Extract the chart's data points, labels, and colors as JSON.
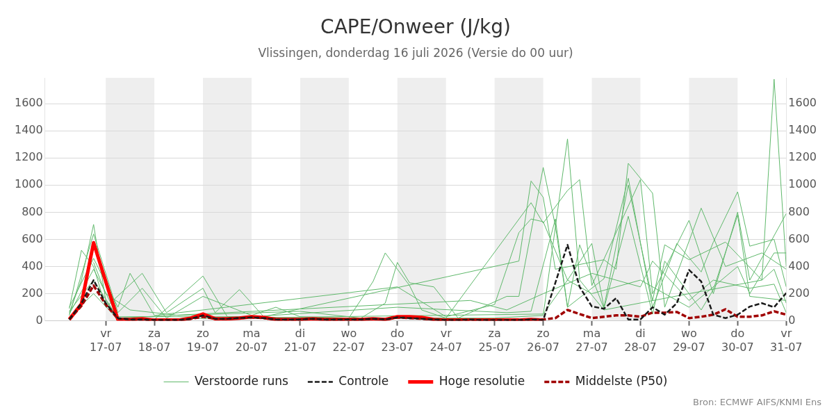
{
  "chart_data": {
    "type": "line",
    "title": "CAPE/Onweer (J/kg)",
    "subtitle": "Vlissingen, donderdag 16 juli 2026 (Versie do 00 uur)",
    "x": [
      "2026-07-16T06:00",
      "2026-07-16T12:00",
      "2026-07-16T18:00",
      "2026-07-17T00:00",
      "2026-07-17T06:00",
      "2026-07-17T12:00",
      "2026-07-17T18:00",
      "2026-07-18T00:00",
      "2026-07-18T06:00",
      "2026-07-18T12:00",
      "2026-07-18T18:00",
      "2026-07-19T00:00",
      "2026-07-19T06:00",
      "2026-07-19T12:00",
      "2026-07-19T18:00",
      "2026-07-20T00:00",
      "2026-07-20T06:00",
      "2026-07-20T12:00",
      "2026-07-20T18:00",
      "2026-07-21T00:00",
      "2026-07-21T06:00",
      "2026-07-21T12:00",
      "2026-07-21T18:00",
      "2026-07-22T00:00",
      "2026-07-22T06:00",
      "2026-07-22T12:00",
      "2026-07-22T18:00",
      "2026-07-23T00:00",
      "2026-07-23T06:00",
      "2026-07-23T12:00",
      "2026-07-23T18:00",
      "2026-07-24T00:00",
      "2026-07-24T06:00",
      "2026-07-24T12:00",
      "2026-07-24T18:00",
      "2026-07-25T00:00",
      "2026-07-25T06:00",
      "2026-07-25T12:00",
      "2026-07-25T18:00",
      "2026-07-26T00:00",
      "2026-07-26T06:00",
      "2026-07-26T12:00",
      "2026-07-26T18:00",
      "2026-07-27T00:00",
      "2026-07-27T06:00",
      "2026-07-27T12:00",
      "2026-07-27T18:00",
      "2026-07-28T00:00",
      "2026-07-28T06:00",
      "2026-07-28T12:00",
      "2026-07-28T18:00",
      "2026-07-29T00:00",
      "2026-07-29T06:00",
      "2026-07-29T12:00",
      "2026-07-29T18:00",
      "2026-07-30T00:00",
      "2026-07-30T06:00",
      "2026-07-30T12:00",
      "2026-07-30T18:00",
      "2026-07-31T00:00"
    ],
    "series": [
      {
        "name": "Verstoorde runs",
        "color": "#5fb86b",
        "line_style": "solid",
        "x": [
          "2026-07-16T06:00",
          "2026-07-16T12:00",
          "2026-07-16T18:00",
          "2026-07-17T00:00",
          "2026-07-17T06:00",
          "2026-07-18T00:00",
          "2026-07-19T00:00",
          "2026-07-19T12:00",
          "2026-07-22T00:00",
          "2026-07-25T00:00",
          "2026-07-26T00:00",
          "2026-07-26T12:00",
          "2026-07-26T18:00",
          "2026-07-27T06:00",
          "2026-07-29T00:00",
          "2026-07-30T12:00",
          "2026-07-30T18:00",
          "2026-07-31T00:00"
        ],
        "values": [
          60,
          300,
          710,
          150,
          20,
          10,
          330,
          30,
          20,
          20,
          40,
          1340,
          300,
          80,
          200,
          300,
          1780,
          400
        ]
      },
      {
        "name": null,
        "color": "#5fb86b",
        "line_style": "solid",
        "x": [
          "2026-07-16T06:00",
          "2026-07-16T12:00",
          "2026-07-16T18:00",
          "2026-07-17T00:00",
          "2026-07-17T18:00",
          "2026-07-18T06:00",
          "2026-07-19T00:00",
          "2026-07-19T06:00",
          "2026-07-19T18:00",
          "2026-07-20T06:00",
          "2026-07-25T12:00",
          "2026-07-25T18:00",
          "2026-07-26T00:00",
          "2026-07-26T06:00",
          "2026-07-27T06:00",
          "2026-07-27T12:00",
          "2026-07-27T18:00",
          "2026-07-28T06:00",
          "2026-07-28T12:00",
          "2026-07-29T06:00",
          "2026-07-29T18:00",
          "2026-07-30T12:00",
          "2026-07-31T00:00"
        ],
        "values": [
          90,
          520,
          400,
          100,
          350,
          60,
          240,
          60,
          230,
          30,
          440,
          1030,
          910,
          380,
          450,
          380,
          1160,
          940,
          100,
          830,
          400,
          500,
          380
        ]
      },
      {
        "name": null,
        "color": "#5fb86b",
        "line_style": "solid",
        "x": [
          "2026-07-16T06:00",
          "2026-07-16T18:00",
          "2026-07-17T06:00",
          "2026-07-17T18:00",
          "2026-07-18T06:00",
          "2026-07-19T00:00",
          "2026-07-20T00:00",
          "2026-07-20T12:00",
          "2026-07-21T00:00",
          "2026-07-22T00:00",
          "2026-07-22T12:00",
          "2026-07-22T18:00",
          "2026-07-23T06:00",
          "2026-07-23T12:00",
          "2026-07-24T00:00",
          "2026-07-25T18:00",
          "2026-07-26T00:00",
          "2026-07-26T12:00",
          "2026-07-26T18:00",
          "2026-07-27T00:00",
          "2026-07-28T00:00",
          "2026-07-28T06:00",
          "2026-07-29T00:00",
          "2026-07-29T12:00",
          "2026-07-30T00:00",
          "2026-07-30T06:00",
          "2026-07-31T00:00"
        ],
        "values": [
          40,
          640,
          60,
          240,
          20,
          180,
          40,
          100,
          30,
          20,
          290,
          500,
          260,
          80,
          20,
          870,
          720,
          960,
          1040,
          260,
          1040,
          200,
          740,
          200,
          800,
          300,
          790
        ]
      },
      {
        "name": null,
        "color": "#5fb86b",
        "line_style": "solid",
        "x": [
          "2026-07-16T18:00",
          "2026-07-17T00:00",
          "2026-07-17T12:00",
          "2026-07-18T12:00",
          "2026-07-21T00:00",
          "2026-07-22T06:00",
          "2026-07-22T18:00",
          "2026-07-23T00:00",
          "2026-07-23T06:00",
          "2026-07-23T18:00",
          "2026-07-24T06:00",
          "2026-07-25T06:00",
          "2026-07-25T12:00",
          "2026-07-26T00:00",
          "2026-07-26T06:00",
          "2026-07-26T12:00",
          "2026-07-27T06:00",
          "2026-07-27T18:00",
          "2026-07-28T06:00",
          "2026-07-28T18:00",
          "2026-07-29T06:00",
          "2026-07-29T12:00",
          "2026-07-30T00:00",
          "2026-07-30T06:00",
          "2026-07-30T18:00",
          "2026-07-31T00:00"
        ],
        "values": [
          430,
          200,
          80,
          40,
          70,
          20,
          130,
          430,
          280,
          250,
          20,
          180,
          180,
          1130,
          700,
          100,
          310,
          1050,
          100,
          570,
          360,
          580,
          950,
          550,
          600,
          250
        ]
      },
      {
        "name": null,
        "color": "#5fb86b",
        "line_style": "solid",
        "x": [
          "2026-07-16T06:00",
          "2026-07-16T18:00",
          "2026-07-17T06:00",
          "2026-07-17T12:00",
          "2026-07-18T00:00",
          "2026-07-19T00:00",
          "2026-07-23T00:00",
          "2026-07-24T00:00",
          "2026-07-25T00:00",
          "2026-07-25T12:00",
          "2026-07-25T18:00",
          "2026-07-26T00:00",
          "2026-07-26T12:00",
          "2026-07-27T00:00",
          "2026-07-27T06:00",
          "2026-07-27T18:00",
          "2026-07-28T06:00",
          "2026-07-28T12:00",
          "2026-07-29T00:00",
          "2026-07-29T18:00",
          "2026-07-30T12:00",
          "2026-07-30T18:00",
          "2026-07-31T00:00"
        ],
        "values": [
          100,
          460,
          100,
          350,
          40,
          80,
          250,
          30,
          120,
          650,
          750,
          730,
          300,
          570,
          100,
          1000,
          150,
          560,
          450,
          580,
          300,
          380,
          130
        ]
      },
      {
        "name": null,
        "color": "#5fb86b",
        "line_style": "solid",
        "x": [
          "2026-07-16T06:00",
          "2026-07-16T18:00",
          "2026-07-17T06:00",
          "2026-07-20T00:00",
          "2026-07-23T00:00",
          "2026-07-25T06:00",
          "2026-07-25T18:00",
          "2026-07-26T06:00",
          "2026-07-26T12:00",
          "2026-07-26T18:00",
          "2026-07-27T06:00",
          "2026-07-27T18:00",
          "2026-07-28T06:00",
          "2026-07-28T12:00",
          "2026-07-29T06:00",
          "2026-07-29T12:00",
          "2026-07-30T00:00",
          "2026-07-30T06:00",
          "2026-07-31T00:00"
        ],
        "values": [
          50,
          380,
          30,
          30,
          100,
          60,
          70,
          750,
          100,
          560,
          90,
          770,
          50,
          440,
          80,
          230,
          780,
          180,
          150
        ]
      },
      {
        "name": null,
        "color": "#5fb86b",
        "line_style": "solid",
        "x": [
          "2026-07-16T06:00",
          "2026-07-16T18:00",
          "2026-07-17T06:00",
          "2026-07-26T00:00",
          "2026-07-26T12:00",
          "2026-07-27T00:00",
          "2026-07-28T00:00",
          "2026-07-29T00:00",
          "2026-07-30T00:00",
          "2026-07-30T06:00",
          "2026-07-30T18:00",
          "2026-07-31T00:00"
        ],
        "values": [
          30,
          200,
          10,
          50,
          300,
          200,
          300,
          100,
          400,
          200,
          500,
          500
        ]
      },
      {
        "name": null,
        "color": "#5fb86b",
        "line_style": "solid",
        "x": [
          "2026-07-16T06:00",
          "2026-07-16T18:00",
          "2026-07-17T06:00",
          "2026-07-24T12:00",
          "2026-07-25T06:00",
          "2026-07-26T00:00",
          "2026-07-27T00:00",
          "2026-07-28T00:00",
          "2026-07-28T06:00",
          "2026-07-29T00:00",
          "2026-07-29T12:00",
          "2026-07-30T06:00",
          "2026-07-30T18:00",
          "2026-07-31T00:00"
        ],
        "values": [
          70,
          300,
          20,
          150,
          80,
          200,
          350,
          250,
          440,
          150,
          300,
          240,
          270,
          60
        ]
      },
      {
        "name": "Controle",
        "color": "#1a1a1a",
        "line_style": "dashed",
        "values": [
          10,
          130,
          300,
          130,
          20,
          10,
          10,
          5,
          5,
          5,
          15,
          40,
          15,
          15,
          20,
          25,
          20,
          10,
          10,
          10,
          15,
          10,
          10,
          10,
          10,
          15,
          10,
          25,
          20,
          15,
          10,
          5,
          5,
          10,
          5,
          5,
          5,
          5,
          10,
          5,
          280,
          560,
          250,
          106,
          89,
          167,
          10,
          10,
          100,
          45,
          130,
          375,
          290,
          45,
          20,
          45,
          105,
          130,
          100,
          205
        ]
      },
      {
        "name": "Hoge resolutie",
        "color": "#ff0000",
        "line_style": "solid",
        "values": [
          10,
          125,
          575,
          290,
          10,
          10,
          15,
          5,
          5,
          5,
          20,
          50,
          15,
          15,
          20,
          30,
          25,
          10,
          10,
          10,
          15,
          10,
          10,
          10,
          10,
          15,
          10,
          30,
          30,
          25,
          10,
          5,
          5,
          5,
          5,
          5,
          5,
          5,
          10,
          5,
          null,
          null,
          null,
          null,
          null,
          null,
          null,
          null,
          null,
          null,
          null,
          null,
          null,
          null,
          null,
          null,
          null,
          null,
          null,
          null
        ]
      },
      {
        "name": "Middelste (P50)",
        "color": "#a00000",
        "line_style": "dashed",
        "values": [
          10,
          110,
          260,
          120,
          15,
          10,
          10,
          5,
          5,
          5,
          15,
          30,
          15,
          15,
          20,
          25,
          20,
          10,
          10,
          10,
          15,
          10,
          10,
          10,
          10,
          15,
          10,
          25,
          20,
          15,
          10,
          5,
          5,
          5,
          5,
          5,
          5,
          5,
          10,
          10,
          20,
          80,
          50,
          20,
          30,
          40,
          40,
          30,
          60,
          60,
          65,
          20,
          30,
          45,
          85,
          30,
          30,
          40,
          70,
          45
        ]
      }
    ],
    "xlim": [
      "2026-07-15T18:00",
      "2026-07-31T00:00"
    ],
    "xticks": [
      {
        "value": "2026-07-17",
        "label": "vr\n17-07"
      },
      {
        "value": "2026-07-18",
        "label": "za\n18-07"
      },
      {
        "value": "2026-07-19",
        "label": "zo\n19-07"
      },
      {
        "value": "2026-07-20",
        "label": "ma\n20-07"
      },
      {
        "value": "2026-07-21",
        "label": "di\n21-07"
      },
      {
        "value": "2026-07-22",
        "label": "wo\n22-07"
      },
      {
        "value": "2026-07-23",
        "label": "do\n23-07"
      },
      {
        "value": "2026-07-24",
        "label": "vr\n24-07"
      },
      {
        "value": "2026-07-25",
        "label": "za\n25-07"
      },
      {
        "value": "2026-07-26",
        "label": "zo\n26-07"
      },
      {
        "value": "2026-07-27",
        "label": "ma\n27-07"
      },
      {
        "value": "2026-07-28",
        "label": "di\n28-07"
      },
      {
        "value": "2026-07-29",
        "label": "wo\n29-07"
      },
      {
        "value": "2026-07-30",
        "label": "do\n30-07"
      },
      {
        "value": "2026-07-31",
        "label": "vr\n31-07"
      }
    ],
    "ylim": [
      0,
      1790
    ],
    "yticks": [
      0,
      200,
      400,
      600,
      800,
      1000,
      1200,
      1400,
      1600
    ],
    "y2lim": [
      0,
      1790
    ],
    "y2ticks": [
      0,
      200,
      400,
      600,
      800,
      1000,
      1200,
      1400,
      1600
    ],
    "bands": [
      {
        "axis": "x",
        "from": "2026-07-17",
        "to": "2026-07-18",
        "color": "#eeeeee"
      },
      {
        "axis": "x",
        "from": "2026-07-19",
        "to": "2026-07-20",
        "color": "#eeeeee"
      },
      {
        "axis": "x",
        "from": "2026-07-21",
        "to": "2026-07-22",
        "color": "#eeeeee"
      },
      {
        "axis": "x",
        "from": "2026-07-23",
        "to": "2026-07-24",
        "color": "#eeeeee"
      },
      {
        "axis": "x",
        "from": "2026-07-25",
        "to": "2026-07-26",
        "color": "#eeeeee"
      },
      {
        "axis": "x",
        "from": "2026-07-27",
        "to": "2026-07-28",
        "color": "#eeeeee"
      },
      {
        "axis": "x",
        "from": "2026-07-29",
        "to": "2026-07-30",
        "color": "#eeeeee"
      }
    ],
    "grid": "y",
    "legend": "bottom",
    "annotations": [
      "Bron: ECMWF AIFS/KNMI Ens"
    ]
  }
}
